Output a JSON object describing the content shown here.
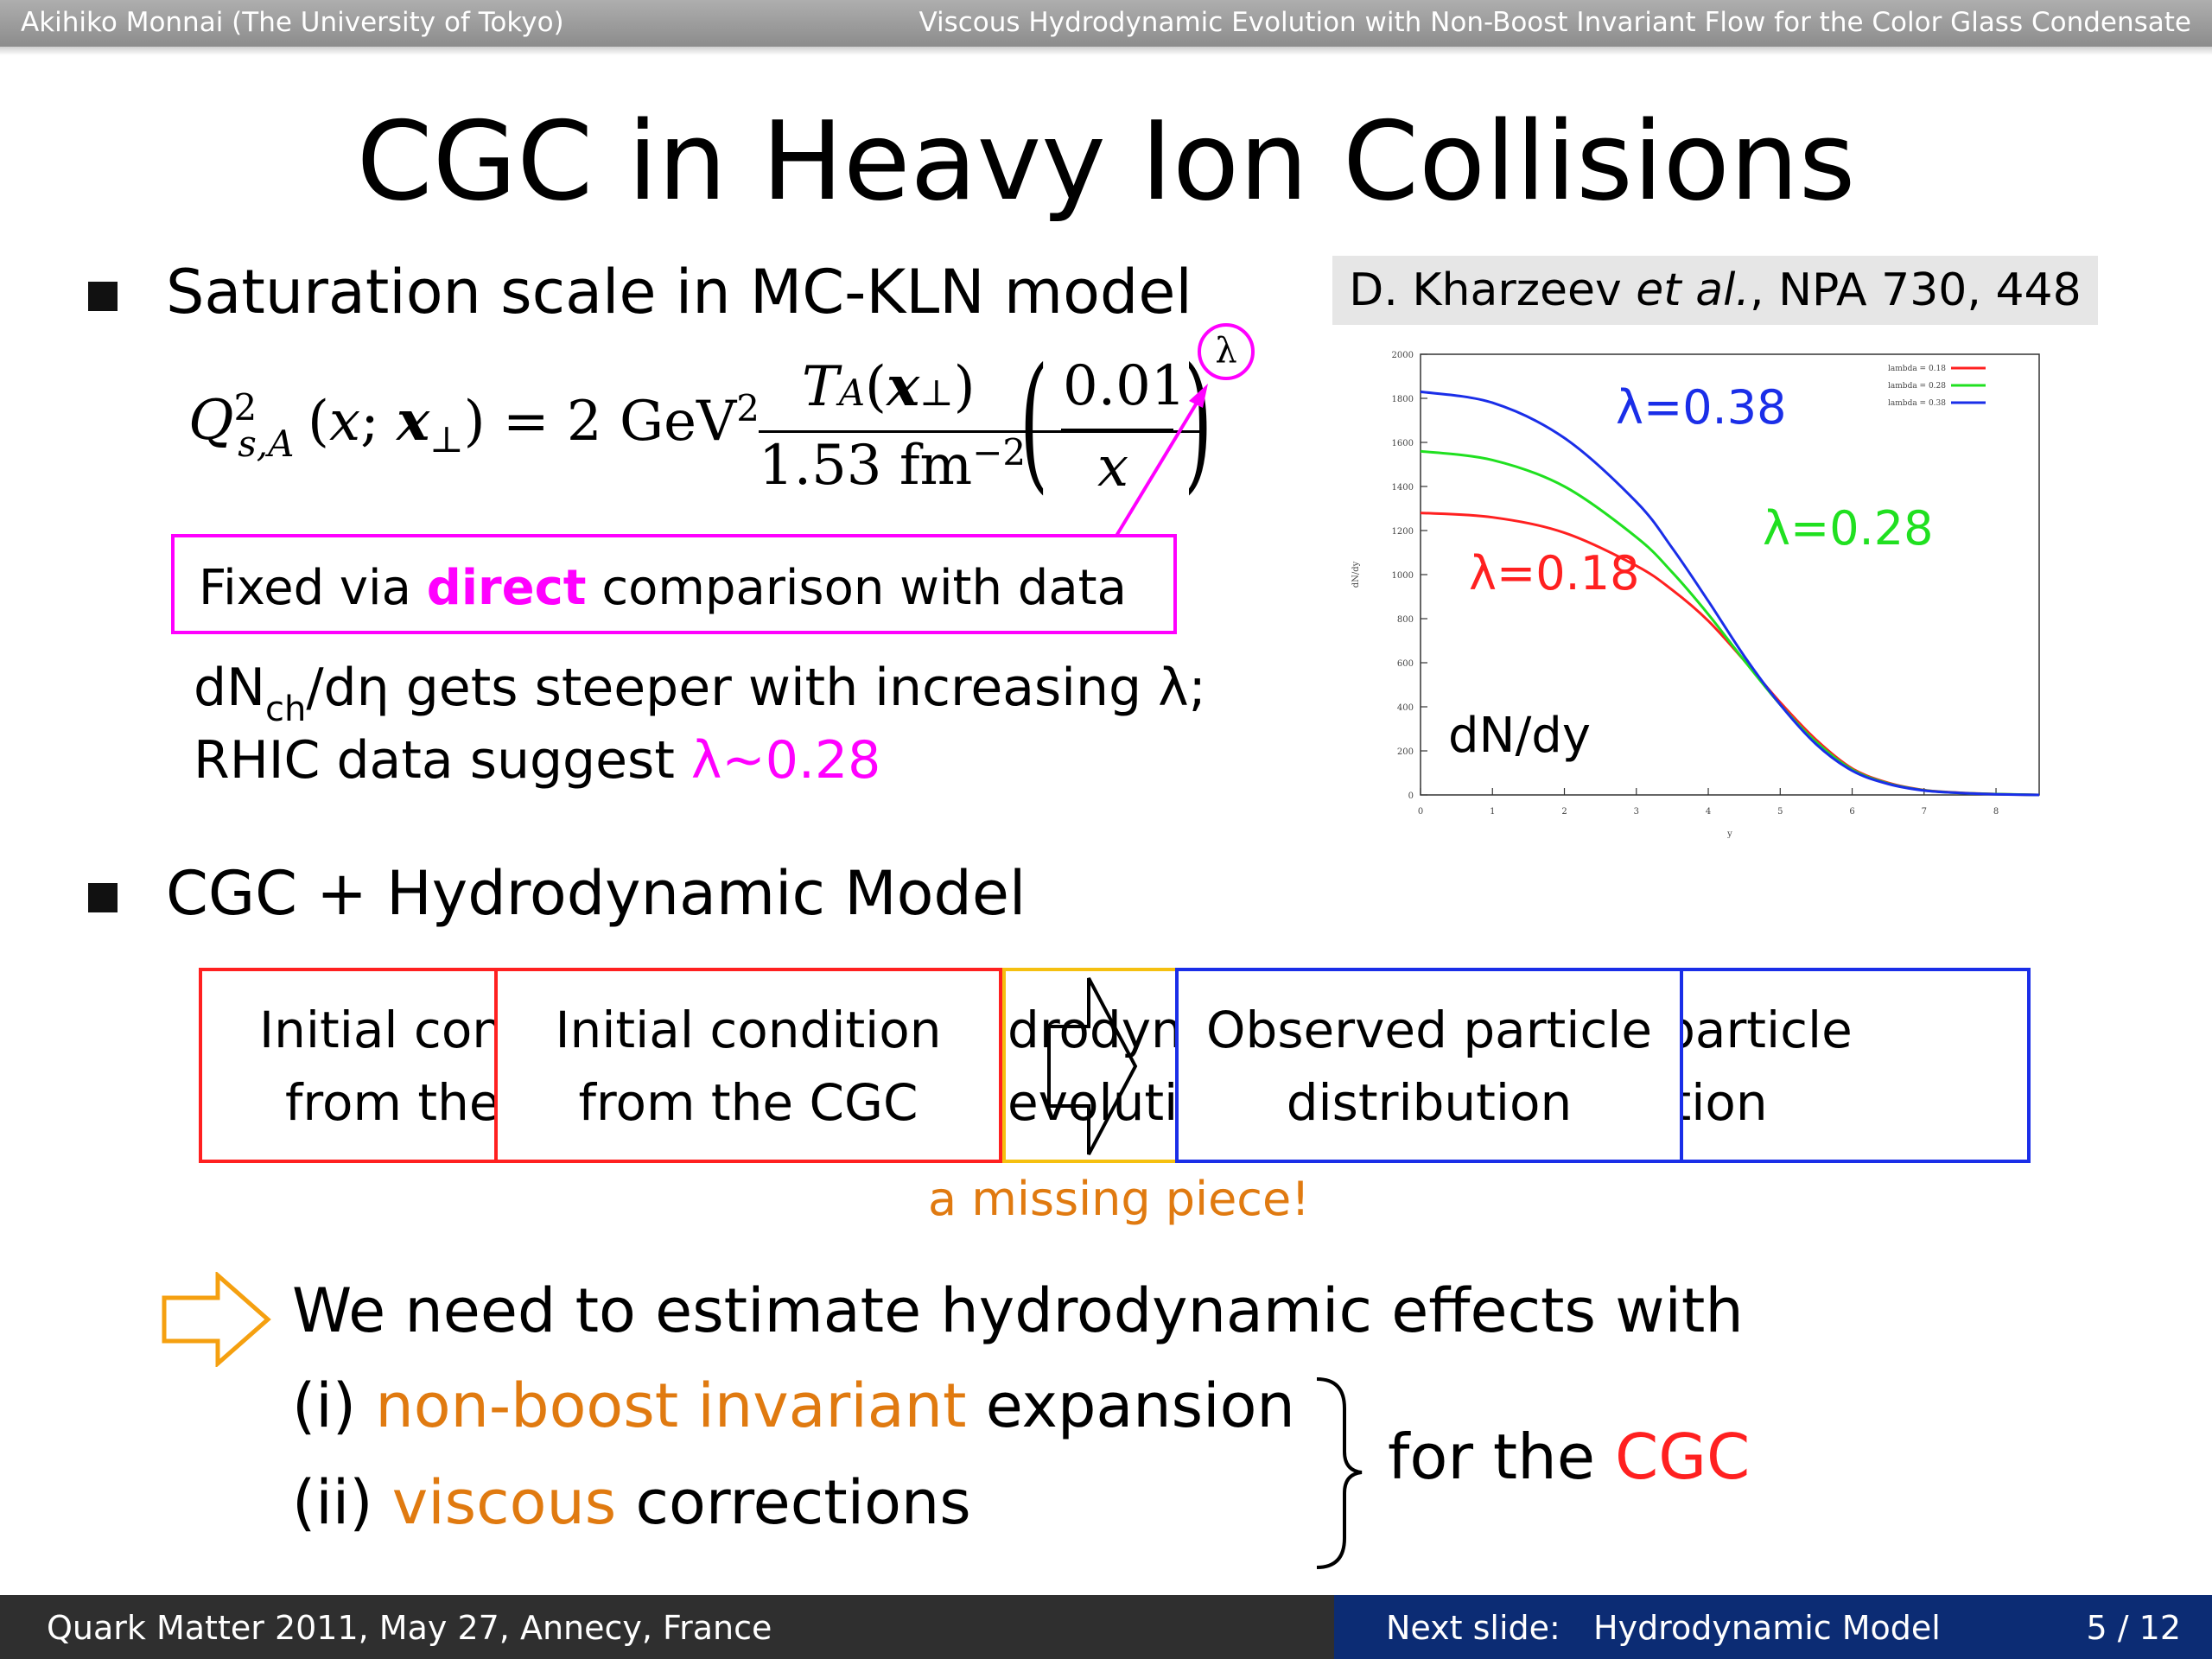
{
  "header": {
    "author": "Akihiko Monnai (The University of Tokyo)",
    "talk_title": "Viscous Hydrodynamic Evolution with Non-Boost Invariant Flow for the Color Glass Condensate"
  },
  "slide": {
    "title": "CGC in Heavy Ion Collisions",
    "bullet1": "Saturation scale in MC-KLN model",
    "lambda_symbol": "λ",
    "fixed_box": {
      "pre": "Fixed via ",
      "highlight": "direct",
      "post": " comparison with data"
    },
    "steep_line": {
      "a": "dN",
      "sub": "ch",
      "b": "/dη gets steeper with increasing λ;"
    },
    "rhic_line": {
      "pre": "RHIC data suggest ",
      "value": "λ~0.28"
    },
    "reference": {
      "author": "D. Kharzeev ",
      "etal": "et al.",
      "journal": ", NPA 730, 448"
    },
    "bullet2": "CGC + Hydrodynamic Model",
    "flow": {
      "box1": [
        "Initial con",
        "from the"
      ],
      "box2": [
        "Initial condition",
        "from the CGC"
      ],
      "box3": [
        "drodyn",
        "evoluti"
      ],
      "box4": [
        "Observed particle",
        "distribution"
      ],
      "box5": [
        "rved particle",
        "stribution"
      ]
    },
    "missing": "a missing piece!",
    "conclusion": {
      "line1": "We need to estimate hydrodynamic effects with",
      "line2_pre": "(i) ",
      "line2_hl": "non-boost invariant",
      "line2_post": " expansion",
      "line3_pre": "(ii) ",
      "line3_hl": "viscous",
      "line3_post": " corrections",
      "side_pre": "for the ",
      "side_hl": "CGC"
    }
  },
  "footer": {
    "conference": "Quark Matter 2011, May 27, Annecy, France",
    "next_label": "Next slide:",
    "next_title": "Hydrodynamic Model",
    "page": "5 / 12"
  },
  "colors": {
    "red": "#ff2020",
    "green": "#20e020",
    "blue": "#1a2ee8",
    "magenta": "#ff00ff",
    "orange": "#e07a10"
  },
  "chart_data": {
    "type": "line",
    "title": "",
    "xlabel": "y",
    "ylabel": "dN/dy",
    "overlay_label": "dN/dy",
    "xlim": [
      0,
      8.6
    ],
    "ylim": [
      0,
      2000
    ],
    "x_ticks": [
      "0",
      "1",
      "2",
      "3",
      "4",
      "5",
      "6",
      "7",
      "8"
    ],
    "y_ticks": [
      "0",
      "200",
      "400",
      "600",
      "800",
      "1000",
      "1200",
      "1400",
      "1600",
      "1800",
      "2000"
    ],
    "legend": [
      "lambda = 0.18",
      "lambda = 0.28",
      "lambda = 0.38"
    ],
    "legend_position": "top-right",
    "x": [
      0,
      1,
      2,
      3,
      3.5,
      4,
      4.5,
      5,
      5.5,
      6,
      6.5,
      7,
      7.5,
      8,
      8.6
    ],
    "series": [
      {
        "name": "λ=0.18",
        "color": "#ff2020",
        "values": [
          1280,
          1260,
          1190,
          1040,
          930,
          790,
          610,
          420,
          250,
          120,
          55,
          22,
          10,
          4,
          0
        ]
      },
      {
        "name": "λ=0.28",
        "color": "#20e020",
        "values": [
          1560,
          1520,
          1400,
          1170,
          1010,
          820,
          610,
          410,
          240,
          115,
          52,
          21,
          9,
          4,
          0
        ]
      },
      {
        "name": "λ=0.38",
        "color": "#1a2ee8",
        "values": [
          1830,
          1780,
          1620,
          1330,
          1120,
          880,
          630,
          410,
          230,
          110,
          50,
          20,
          9,
          3,
          0
        ]
      }
    ],
    "annotations": [
      {
        "text": "λ=0.38",
        "color": "#1a2ee8"
      },
      {
        "text": "λ=0.28",
        "color": "#20e020"
      },
      {
        "text": "λ=0.18",
        "color": "#ff2020"
      }
    ]
  }
}
